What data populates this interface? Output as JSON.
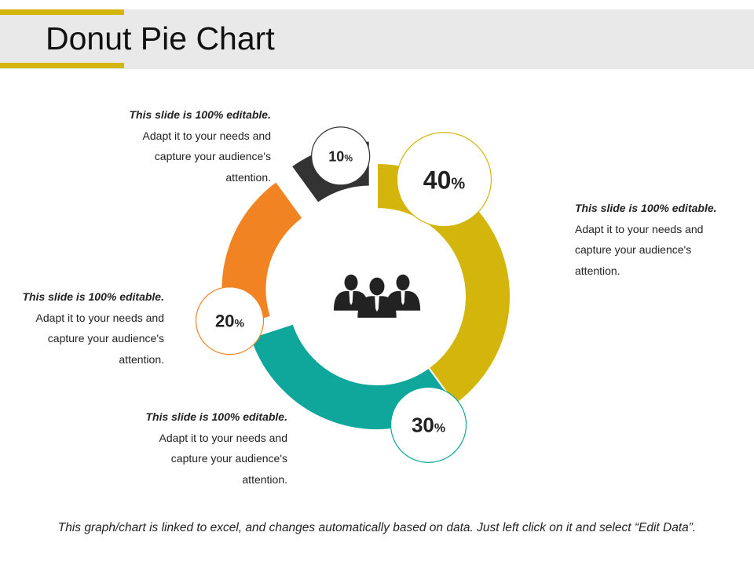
{
  "title": "Donut Pie Chart",
  "footer": "This graph/chart is linked to excel, and changes automatically based on data. Just left click on it and select “Edit Data”.",
  "icon": "people-group-icon",
  "chart_data": {
    "type": "pie",
    "subtype": "donut",
    "slices": [
      {
        "label": "40",
        "value": 40,
        "color": "#d4b50b",
        "exploded": false
      },
      {
        "label": "30",
        "value": 30,
        "color": "#0fa79c",
        "exploded": false
      },
      {
        "label": "20",
        "value": 20,
        "color": "#f28322",
        "exploded": true
      },
      {
        "label": "10",
        "value": 10,
        "color": "#333333",
        "exploded": true
      }
    ],
    "unit": "%"
  },
  "notes": [
    {
      "id": "note-40",
      "head": "This slide is 100% editable.",
      "lines": [
        "Adapt it to your needs and",
        "capture your audience's",
        "attention."
      ]
    },
    {
      "id": "note-10",
      "head": "This slide is 100% editable.",
      "lines": [
        "Adapt it to your needs and",
        "capture your audience's",
        "attention."
      ]
    },
    {
      "id": "note-20",
      "head": "This slide is 100% editable.",
      "lines": [
        "Adapt it to your needs and",
        "capture your audience's",
        "attention."
      ]
    },
    {
      "id": "note-30",
      "head": "This slide is 100% editable.",
      "lines": [
        "Adapt it to your needs and",
        "capture your audience's",
        "attention."
      ]
    }
  ]
}
